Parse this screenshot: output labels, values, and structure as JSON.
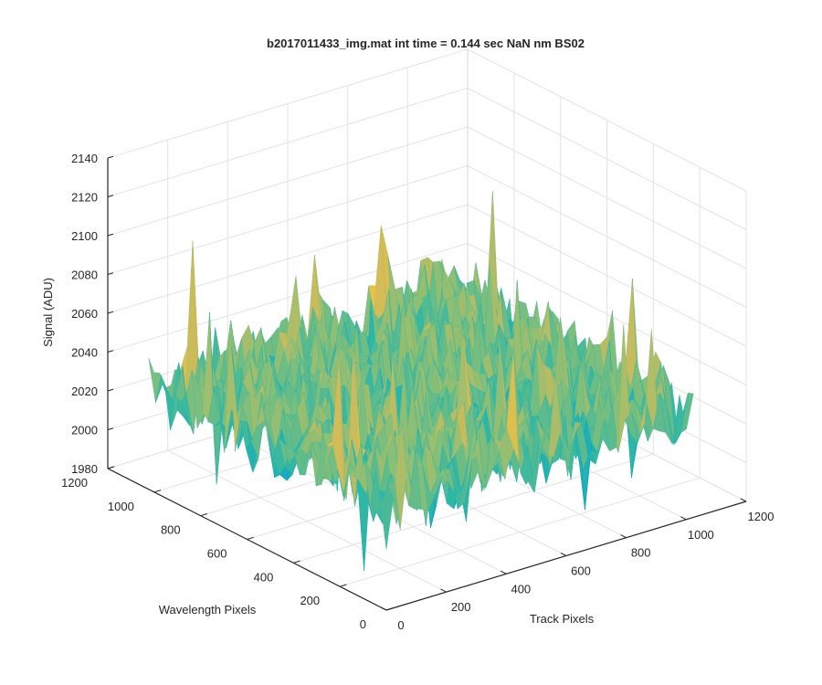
{
  "chart_data": {
    "type": "surface",
    "title": "b2017011433_img.mat int time = 0.144 sec  NaN nm BS02",
    "xlabel": "Track Pixels",
    "ylabel": "Wavelength Pixels",
    "zlabel": "Signal (ADU)",
    "xlim": [
      0,
      1200
    ],
    "ylim": [
      0,
      1200
    ],
    "zlim": [
      1980,
      2140
    ],
    "x_ticks": [
      "0",
      "200",
      "400",
      "600",
      "800",
      "1000",
      "1200"
    ],
    "y_ticks": [
      "0",
      "200",
      "400",
      "600",
      "800",
      "1000",
      "1200"
    ],
    "z_ticks": [
      "1980",
      "2000",
      "2020",
      "2040",
      "2060",
      "2080",
      "2100",
      "2120",
      "2140"
    ],
    "surface": {
      "x_extent": [
        0,
        1024
      ],
      "y_extent": [
        0,
        1024
      ],
      "mean_signal": 2035,
      "typical_range": [
        2000,
        2070
      ],
      "min_signal": 1985,
      "max_signal": 2130,
      "colormap": "parula"
    },
    "grid": true,
    "box": "three back planes"
  }
}
